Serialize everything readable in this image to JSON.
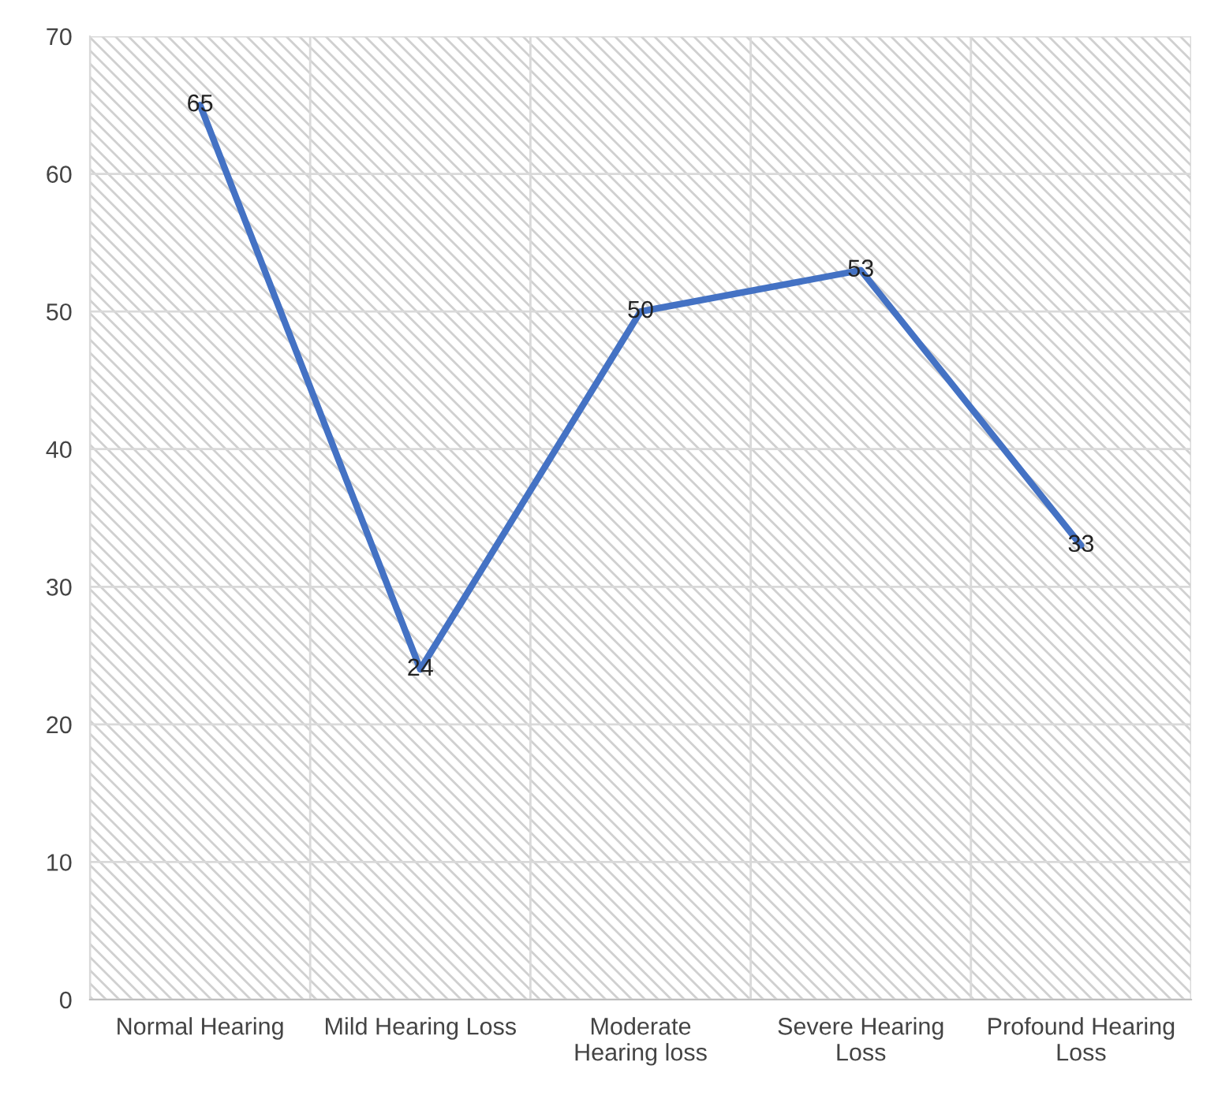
{
  "chart_data": {
    "type": "line",
    "categories": [
      "Normal Hearing",
      "Mild Hearing Loss",
      "Moderate\nHearing loss",
      "Severe Hearing\nLoss",
      "Profound Hearing\nLoss"
    ],
    "series": [
      {
        "color": "#4472c4",
        "values": [
          65,
          24,
          50,
          53,
          33
        ]
      }
    ],
    "ylim": [
      0,
      70
    ],
    "yticks": [
      0,
      10,
      20,
      30,
      40,
      50,
      60,
      70
    ],
    "grid": true,
    "data_labels": true,
    "marker": "none",
    "line_style": "solid"
  }
}
